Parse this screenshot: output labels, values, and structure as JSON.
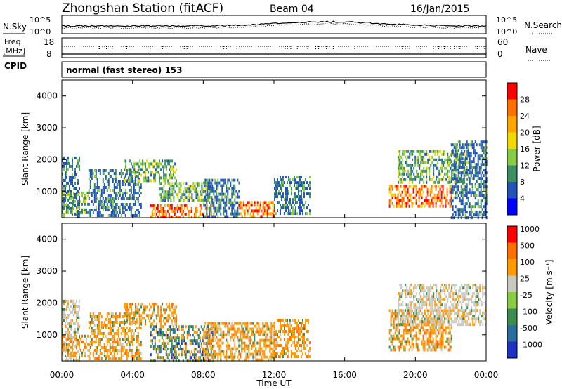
{
  "header": {
    "station": "Zhongshan Station (fitACF)",
    "beam": "Beam 04",
    "date": "16/Jan/2015"
  },
  "noise_panel": {
    "left_label": "N.Sky",
    "right_label": "N.Search",
    "left_ticks": [
      "10^5",
      "10^0"
    ],
    "right_ticks": [
      "10^5",
      "10^0"
    ]
  },
  "freq_panel": {
    "left_label_1": "Freq.",
    "left_label_2": "[MHz]",
    "left_ticks": [
      "18",
      "8"
    ],
    "right_label": "Nave",
    "right_ticks": [
      "60",
      "0"
    ]
  },
  "cpid": {
    "label": "CPID",
    "text": "normal (fast stereo) 153"
  },
  "time_axis": {
    "label": "Time UT",
    "ticks": [
      "00:00",
      "04:00",
      "08:00",
      "12:00",
      "16:00",
      "20:00",
      "00:00"
    ]
  },
  "chart_data": [
    {
      "type": "heatmap",
      "name": "power",
      "xlabel": "",
      "ylabel": "Slant Range [km]",
      "ylim": [
        180,
        4500
      ],
      "yticks": [
        "1000",
        "2000",
        "3000",
        "4000"
      ],
      "xlim_hours": [
        0,
        24
      ],
      "colorbar": {
        "label": "Power [dB]",
        "ticks": [
          "4",
          "8",
          "12",
          "16",
          "20",
          "24",
          "28"
        ],
        "colors": [
          "#0000ff",
          "#2255bb",
          "#3c8c64",
          "#88cc44",
          "#f0d800",
          "#ffa500",
          "#ff7000",
          "#ff0000"
        ],
        "range": [
          0,
          30
        ]
      },
      "echo_regions": [
        {
          "t": [
            0.0,
            1.0
          ],
          "r": [
            200,
            2100
          ],
          "level": "low"
        },
        {
          "t": [
            0.0,
            1.5
          ],
          "r": [
            300,
            1000
          ],
          "level": "mid"
        },
        {
          "t": [
            1.5,
            4.5
          ],
          "r": [
            250,
            1700
          ],
          "level": "low"
        },
        {
          "t": [
            3.5,
            6.5
          ],
          "r": [
            1300,
            2000
          ],
          "level": "mid"
        },
        {
          "t": [
            5.0,
            8.5
          ],
          "r": [
            200,
            600
          ],
          "level": "high"
        },
        {
          "t": [
            5.5,
            8.5
          ],
          "r": [
            700,
            1300
          ],
          "level": "mid"
        },
        {
          "t": [
            8.0,
            10.0
          ],
          "r": [
            250,
            1400
          ],
          "level": "low"
        },
        {
          "t": [
            10.0,
            12.0
          ],
          "r": [
            200,
            700
          ],
          "level": "high"
        },
        {
          "t": [
            12.0,
            14.0
          ],
          "r": [
            300,
            1500
          ],
          "level": "low"
        },
        {
          "t": [
            18.5,
            22.0
          ],
          "r": [
            500,
            1200
          ],
          "level": "high"
        },
        {
          "t": [
            19.0,
            23.0
          ],
          "r": [
            1300,
            2300
          ],
          "level": "mid"
        },
        {
          "t": [
            22.0,
            24.0
          ],
          "r": [
            200,
            2600
          ],
          "level": "low"
        }
      ]
    },
    {
      "type": "heatmap",
      "name": "velocity",
      "xlabel": "Time UT",
      "ylabel": "Slant Range [km]",
      "ylim": [
        180,
        4500
      ],
      "yticks": [
        "1000",
        "2000",
        "3000",
        "4000"
      ],
      "xlim_hours": [
        0,
        24
      ],
      "colorbar": {
        "label": "Velocity [m s⁻¹]",
        "ticks": [
          "1000",
          "500",
          "100",
          "25",
          "-25",
          "-100",
          "-500",
          "-1000"
        ],
        "colors": [
          "#1e32c8",
          "#2a6ea0",
          "#3c8c50",
          "#88cc44",
          "#c8c8c0",
          "#ff9a00",
          "#ff7000",
          "#ff0000"
        ],
        "range": [
          -1200,
          1200
        ]
      },
      "echo_regions": [
        {
          "t": [
            0.0,
            1.0
          ],
          "r": [
            200,
            2100
          ],
          "level": "gray"
        },
        {
          "t": [
            0.0,
            1.5
          ],
          "r": [
            300,
            1000
          ],
          "level": "orange"
        },
        {
          "t": [
            1.5,
            4.5
          ],
          "r": [
            250,
            1700
          ],
          "level": "orange"
        },
        {
          "t": [
            3.5,
            6.5
          ],
          "r": [
            1300,
            2000
          ],
          "level": "orange"
        },
        {
          "t": [
            5.0,
            8.5
          ],
          "r": [
            200,
            1300
          ],
          "level": "mixed"
        },
        {
          "t": [
            8.0,
            12.0
          ],
          "r": [
            250,
            1400
          ],
          "level": "orange"
        },
        {
          "t": [
            12.0,
            14.0
          ],
          "r": [
            300,
            1500
          ],
          "level": "orange"
        },
        {
          "t": [
            18.5,
            22.0
          ],
          "r": [
            500,
            1800
          ],
          "level": "orange"
        },
        {
          "t": [
            19.0,
            24.0
          ],
          "r": [
            1300,
            2600
          ],
          "level": "gray"
        }
      ]
    }
  ]
}
